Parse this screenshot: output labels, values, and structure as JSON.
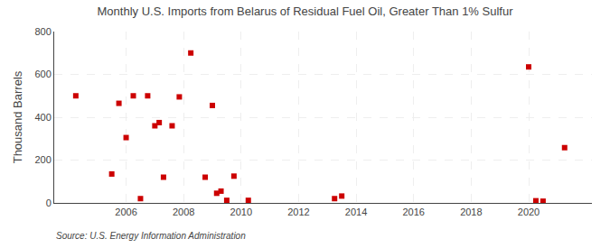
{
  "chart_data": {
    "type": "scatter",
    "title": "Monthly U.S. Imports from Belarus of Residual Fuel Oil, Greater Than 1% Sulfur",
    "y_label": "Thousand Barrels",
    "annotations": [
      "Source: U.S. Energy Information Administration"
    ],
    "x": [
      2004.25,
      2005.5,
      2005.75,
      2006.0,
      2006.25,
      2006.5,
      2006.75,
      2007.0,
      2007.15,
      2007.3,
      2007.6,
      2007.85,
      2008.25,
      2008.75,
      2009.0,
      2009.15,
      2009.3,
      2009.5,
      2009.75,
      2010.25,
      2013.25,
      2013.5,
      2020.0,
      2020.25,
      2020.5,
      2021.25
    ],
    "values": [
      500,
      135,
      465,
      305,
      500,
      20,
      500,
      360,
      375,
      120,
      360,
      495,
      700,
      120,
      455,
      45,
      55,
      12,
      125,
      12,
      20,
      32,
      635,
      10,
      8,
      258
    ],
    "color": "#cc0000",
    "marker": "square",
    "xlim": [
      2003.5,
      2022.2
    ],
    "ylim": [
      0,
      800
    ],
    "xticks": [
      2006,
      2008,
      2010,
      2012,
      2014,
      2016,
      2018,
      2020
    ],
    "yticks": [
      0,
      200,
      400,
      600,
      800
    ],
    "grid": true
  }
}
